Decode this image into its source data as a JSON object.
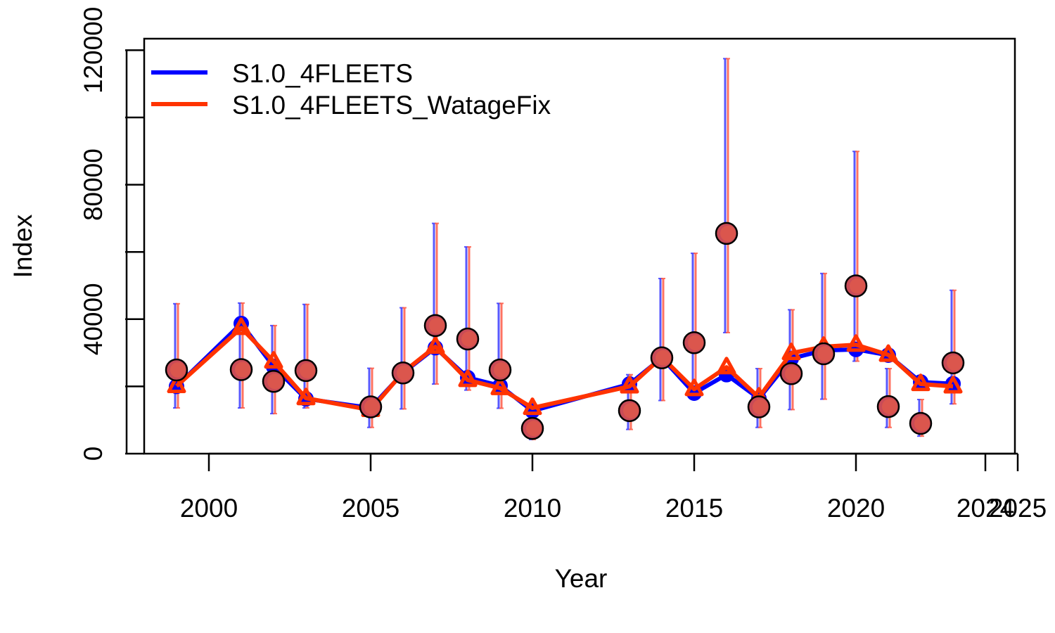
{
  "chart_data": {
    "type": "line",
    "title": "",
    "xlabel": "Year",
    "ylabel": "Index",
    "xlim": [
      1998,
      2025
    ],
    "ylim": [
      0,
      120000
    ],
    "x_ticks": [
      2000,
      2005,
      2010,
      2015,
      2020,
      2024,
      2025
    ],
    "x_tick_labels": [
      "2000",
      "2005",
      "2010",
      "2015",
      "2020",
      "2024",
      "2025"
    ],
    "y_ticks": [
      0,
      40000,
      80000,
      120000
    ],
    "y_tick_labels": [
      "0",
      "40000",
      "80000",
      "120000"
    ],
    "grid": false,
    "legend_position": "top-left",
    "observed": {
      "x": [
        1999,
        2001,
        2002,
        2003,
        2005,
        2006,
        2007,
        2008,
        2009,
        2010,
        2013,
        2014,
        2015,
        2016,
        2017,
        2018,
        2019,
        2020,
        2021,
        2022,
        2023
      ],
      "values": [
        24900,
        25000,
        21500,
        24700,
        13900,
        24000,
        38100,
        34100,
        24900,
        7500,
        12800,
        28500,
        33000,
        65500,
        13900,
        23800,
        29700,
        49900,
        14000,
        9000,
        27000
      ],
      "lower": [
        13600,
        13600,
        11900,
        13600,
        7800,
        13300,
        20700,
        18900,
        13500,
        4200,
        7200,
        15800,
        18100,
        36000,
        7800,
        13100,
        16200,
        27500,
        7800,
        5200,
        14800
      ],
      "upper": [
        44600,
        44800,
        38100,
        44400,
        25400,
        43400,
        68500,
        61500,
        44700,
        13800,
        23500,
        52100,
        59600,
        117500,
        25300,
        42800,
        53600,
        89900,
        25300,
        16100,
        48600
      ]
    },
    "series": [
      {
        "name": "S1.0_4FLEETS",
        "color": "#0000ff",
        "marker": "circle",
        "x": [
          1999,
          2001,
          2002,
          2003,
          2005,
          2006,
          2007,
          2008,
          2009,
          2010,
          2013,
          2014,
          2015,
          2016,
          2017,
          2018,
          2019,
          2020,
          2021,
          2022,
          2023
        ],
        "values": [
          20000,
          38700,
          25900,
          16300,
          13600,
          24000,
          31500,
          22600,
          20200,
          12700,
          20700,
          28500,
          18000,
          23500,
          16400,
          28300,
          30700,
          31000,
          29300,
          21300,
          20800
        ]
      },
      {
        "name": "S1.0_4FLEETS_WatageFix",
        "color": "#ff3300",
        "marker": "triangle",
        "x": [
          1999,
          2001,
          2002,
          2003,
          2005,
          2006,
          2007,
          2008,
          2009,
          2010,
          2013,
          2014,
          2015,
          2016,
          2017,
          2018,
          2019,
          2020,
          2021,
          2022,
          2023
        ],
        "values": [
          20100,
          37400,
          27400,
          16500,
          13000,
          24200,
          31800,
          21900,
          19500,
          13600,
          20000,
          28700,
          19200,
          25700,
          16700,
          29900,
          31800,
          32400,
          29400,
          20700,
          20000
        ]
      }
    ]
  }
}
